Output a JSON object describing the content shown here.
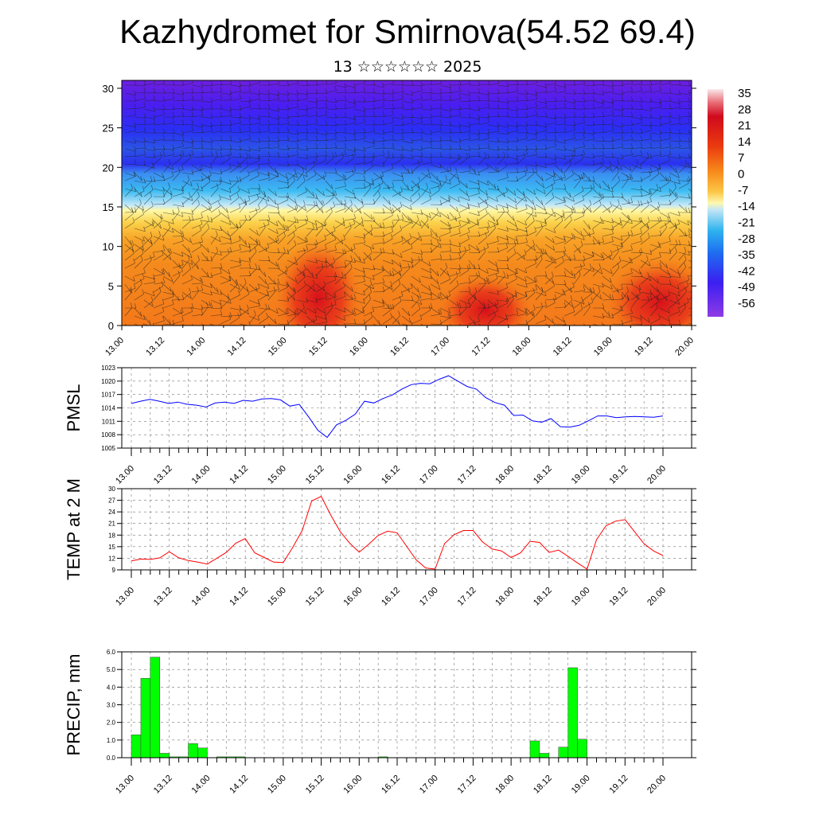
{
  "header": {
    "title": "Kazhydromet for Smirnova(54.52 69.4)",
    "subtitle": "13 ☆☆☆☆☆☆ 2025"
  },
  "time_labels": [
    "13.00",
    "13.12",
    "14.00",
    "14.12",
    "15.00",
    "15.12",
    "16.00",
    "16.12",
    "17.00",
    "17.12",
    "18.00",
    "18.12",
    "19.00",
    "19.12",
    "20.00"
  ],
  "chart_data": [
    {
      "type": "heatmap",
      "name": "cross-section",
      "x_ticks": [
        "13.00",
        "13.12",
        "14.00",
        "14.12",
        "15.00",
        "15.12",
        "16.00",
        "16.12",
        "17.00",
        "17.12",
        "18.00",
        "18.12",
        "19.00",
        "19.12",
        "20.00"
      ],
      "y_ticks": [
        0,
        5,
        10,
        15,
        20,
        25,
        30
      ],
      "ylim": [
        0,
        31
      ],
      "colorbar_labels": [
        35,
        28,
        21,
        14,
        7,
        0,
        -7,
        -14,
        -21,
        -28,
        -35,
        -42,
        -49,
        -56
      ],
      "colors": [
        "#f9e8ea",
        "#cf0a1d",
        "#ea3a0f",
        "#f7891a",
        "#fbc644",
        "#fdf8b0",
        "#b6e2f8",
        "#2fb4ee",
        "#1e6cf0",
        "#3b1ff0",
        "#8f3be6"
      ]
    },
    {
      "type": "line",
      "ylabel": "PMSL",
      "x_ticks": [
        "13.00",
        "13.12",
        "14.00",
        "14.12",
        "15.00",
        "15.12",
        "16.00",
        "16.12",
        "17.00",
        "17.12",
        "18.00",
        "18.12",
        "19.00",
        "19.12",
        "20.00"
      ],
      "y_ticks": [
        1005,
        1008,
        1011,
        1014,
        1017,
        1020,
        1023
      ],
      "ylim": [
        1005,
        1023
      ],
      "color": "#0000ff",
      "values": [
        1015,
        1015.5,
        1015.9,
        1015.5,
        1015.0,
        1015.3,
        1014.8,
        1014.6,
        1014.2,
        1015.1,
        1015.3,
        1015.0,
        1015.7,
        1015.5,
        1016.0,
        1016.1,
        1015.8,
        1014.4,
        1014.8,
        1012.0,
        1009.0,
        1007.4,
        1010.2,
        1011.2,
        1012.6,
        1015.5,
        1015.1,
        1016.1,
        1016.9,
        1018.2,
        1019.2,
        1019.5,
        1019.4,
        1020.4,
        1021.2,
        1020.0,
        1018.8,
        1018.2,
        1016.3,
        1015.2,
        1014.6,
        1012.3,
        1012.4,
        1011.1,
        1010.8,
        1011.6,
        1009.8,
        1009.7,
        1010.1,
        1011.1,
        1012.2,
        1012.2,
        1011.8,
        1012.0,
        1012.1,
        1012.0,
        1011.9,
        1012.2
      ]
    },
    {
      "type": "line",
      "ylabel": "TEMP at 2 M",
      "x_ticks": [
        "13.00",
        "13.12",
        "14.00",
        "14.12",
        "15.00",
        "15.12",
        "16.00",
        "16.12",
        "17.00",
        "17.12",
        "18.00",
        "18.12",
        "19.00",
        "19.12",
        "20.00"
      ],
      "y_ticks": [
        9,
        12,
        15,
        18,
        21,
        24,
        27,
        30
      ],
      "ylim": [
        9,
        30
      ],
      "color": "#ff0000",
      "values": [
        11.3,
        11.8,
        11.7,
        12.1,
        13.7,
        12.1,
        11.4,
        11.0,
        10.5,
        12.0,
        13.5,
        15.9,
        17.1,
        13.4,
        12.2,
        11.0,
        10.9,
        14.8,
        19.2,
        26.8,
        28.0,
        23.2,
        18.9,
        15.9,
        13.6,
        15.6,
        17.9,
        19.0,
        18.6,
        15.1,
        11.6,
        9.5,
        9.2,
        15.8,
        18.1,
        19.2,
        19.2,
        16.2,
        14.4,
        13.9,
        12.2,
        13.4,
        16.4,
        16.1,
        13.5,
        14.1,
        12.5,
        10.8,
        9.2,
        16.8,
        20.4,
        21.6,
        22.0,
        18.9,
        15.8,
        13.9,
        12.7
      ]
    },
    {
      "type": "bar",
      "ylabel": "PRECIP, mm",
      "x_ticks": [
        "13.00",
        "13.12",
        "14.00",
        "14.12",
        "15.00",
        "15.12",
        "16.00",
        "16.12",
        "17.00",
        "17.12",
        "18.00",
        "18.12",
        "19.00",
        "19.12",
        "20.00"
      ],
      "y_ticks": [
        "0.0",
        "1.0",
        "2.0",
        "3.0",
        "4.0",
        "5.0",
        "6.0"
      ],
      "ylim": [
        0,
        6
      ],
      "color": "#00ff00",
      "values": [
        1.3,
        4.5,
        5.7,
        0.25,
        0.05,
        0.05,
        0.8,
        0.55,
        0,
        0.05,
        0.05,
        0.05,
        0,
        0,
        0,
        0,
        0,
        0,
        0,
        0,
        0,
        0,
        0,
        0,
        0,
        0,
        0.05,
        0,
        0,
        0,
        0,
        0,
        0,
        0,
        0,
        0,
        0,
        0,
        0,
        0,
        0,
        0,
        0.95,
        0.25,
        0,
        0.6,
        5.1,
        1.05,
        0,
        0,
        0,
        0,
        0,
        0,
        0,
        0
      ]
    }
  ]
}
